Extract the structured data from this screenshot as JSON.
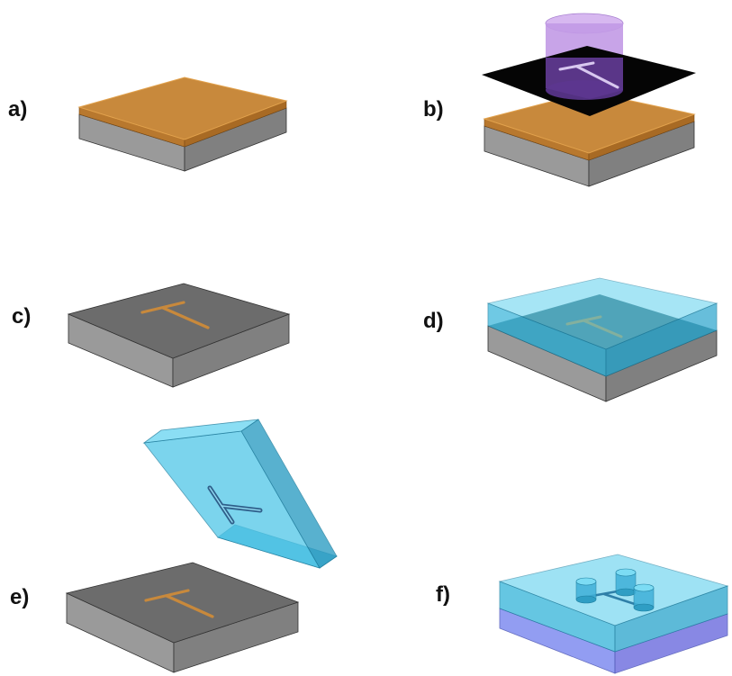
{
  "labels": {
    "a": "a)",
    "b": "b)",
    "c": "c)",
    "d": "d)",
    "e": "e)",
    "f": "f)"
  },
  "colors": {
    "substrate_side": "#8f8f8f",
    "substrate_top": "#6e6e6e",
    "photoresist": "#c8893c",
    "pdms": "#3fc2e6",
    "mask": "#000000",
    "uv_light": "#b98be0",
    "bottom_layer": "#7e7ae8"
  }
}
